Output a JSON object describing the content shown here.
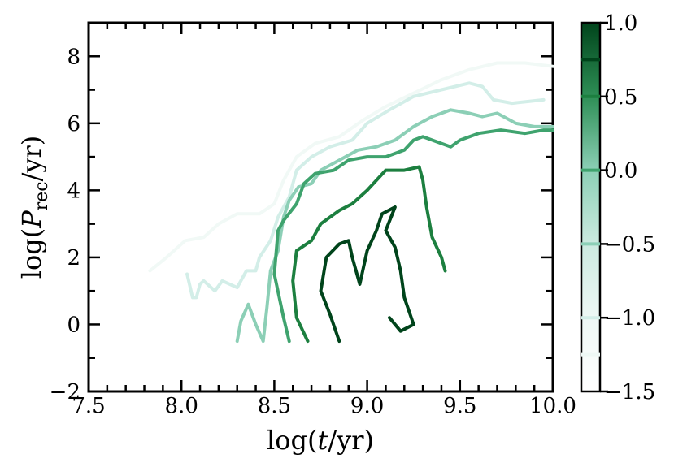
{
  "chart_data": {
    "type": "contour",
    "xlabel": "log(t/yr)",
    "ylabel": "log(P_rec/yr)",
    "xlim": [
      7.5,
      10.0
    ],
    "ylim": [
      -2,
      9
    ],
    "x_ticks": [
      "7.5",
      "8.0",
      "8.5",
      "9.0",
      "9.5",
      "10.0"
    ],
    "y_ticks": [
      "−2",
      "0",
      "2",
      "4",
      "6",
      "8"
    ],
    "colorbar": {
      "range": [
        -1.5,
        1.0
      ],
      "ticks": [
        "1.0",
        "0.5",
        "0.0",
        "−0.5",
        "−1.0",
        "−1.5"
      ],
      "levels": [
        {
          "value": -1.25,
          "color": "#eef8f5"
        },
        {
          "value": -1.0,
          "color": "#d3eee8"
        },
        {
          "value": -0.5,
          "color": "#8ccfb6"
        },
        {
          "value": 0.0,
          "color": "#3fa36e"
        },
        {
          "value": 0.5,
          "color": "#1c7f3f"
        },
        {
          "value": 0.75,
          "color": "#00441b"
        }
      ]
    },
    "contours": [
      {
        "level": -1.25,
        "color": "#f1f9f6",
        "points": [
          [
            7.83,
            1.6
          ],
          [
            7.92,
            2.0
          ],
          [
            8.02,
            2.5
          ],
          [
            8.12,
            2.6
          ],
          [
            8.2,
            3.0
          ],
          [
            8.3,
            3.3
          ],
          [
            8.42,
            3.3
          ],
          [
            8.5,
            3.6
          ],
          [
            8.55,
            4.3
          ],
          [
            8.62,
            5.0
          ],
          [
            8.72,
            5.4
          ],
          [
            8.85,
            5.6
          ],
          [
            8.98,
            6.1
          ],
          [
            9.1,
            6.5
          ],
          [
            9.25,
            6.9
          ],
          [
            9.4,
            7.3
          ],
          [
            9.55,
            7.6
          ],
          [
            9.7,
            7.8
          ],
          [
            9.85,
            7.8
          ],
          [
            10.0,
            7.7
          ]
        ]
      },
      {
        "level": -1.0,
        "color": "#d3eee8",
        "points": [
          [
            8.03,
            1.5
          ],
          [
            8.06,
            0.8
          ],
          [
            8.08,
            0.8
          ],
          [
            8.1,
            1.2
          ],
          [
            8.12,
            1.3
          ],
          [
            8.18,
            1.0
          ],
          [
            8.22,
            1.3
          ],
          [
            8.3,
            1.1
          ],
          [
            8.35,
            1.6
          ],
          [
            8.4,
            1.6
          ],
          [
            8.42,
            2.0
          ],
          [
            8.48,
            2.5
          ],
          [
            8.52,
            3.2
          ],
          [
            8.58,
            3.8
          ],
          [
            8.62,
            4.6
          ],
          [
            8.7,
            5.0
          ],
          [
            8.8,
            5.3
          ],
          [
            8.92,
            5.5
          ],
          [
            9.0,
            6.0
          ],
          [
            9.12,
            6.4
          ],
          [
            9.25,
            6.8
          ],
          [
            9.4,
            7.0
          ],
          [
            9.55,
            7.2
          ],
          [
            9.62,
            7.1
          ],
          [
            9.68,
            6.7
          ],
          [
            9.78,
            6.6
          ],
          [
            9.95,
            6.7
          ]
        ]
      },
      {
        "level": -0.5,
        "color": "#8ccfb6",
        "points": [
          [
            8.3,
            -0.5
          ],
          [
            8.32,
            0.1
          ],
          [
            8.36,
            0.6
          ],
          [
            8.4,
            0.0
          ],
          [
            8.44,
            -0.5
          ],
          [
            8.46,
            0.5
          ],
          [
            8.48,
            1.6
          ],
          [
            8.52,
            2.2
          ],
          [
            8.55,
            3.2
          ],
          [
            8.58,
            3.7
          ],
          [
            8.63,
            4.1
          ],
          [
            8.7,
            4.2
          ],
          [
            8.75,
            4.6
          ],
          [
            8.85,
            4.9
          ],
          [
            8.95,
            5.2
          ],
          [
            9.05,
            5.3
          ],
          [
            9.15,
            5.5
          ],
          [
            9.25,
            5.9
          ],
          [
            9.35,
            6.2
          ],
          [
            9.45,
            6.4
          ],
          [
            9.55,
            6.3
          ],
          [
            9.62,
            6.2
          ],
          [
            9.7,
            6.3
          ],
          [
            9.8,
            6.0
          ],
          [
            9.9,
            5.9
          ],
          [
            10.0,
            5.9
          ]
        ]
      },
      {
        "level": 0.0,
        "color": "#3fa36e",
        "points": [
          [
            8.58,
            -0.5
          ],
          [
            8.55,
            0.2
          ],
          [
            8.5,
            1.5
          ],
          [
            8.52,
            2.8
          ],
          [
            8.55,
            3.1
          ],
          [
            8.62,
            3.6
          ],
          [
            8.66,
            4.2
          ],
          [
            8.72,
            4.5
          ],
          [
            8.82,
            4.6
          ],
          [
            8.9,
            4.9
          ],
          [
            9.0,
            5.0
          ],
          [
            9.1,
            5.0
          ],
          [
            9.2,
            5.2
          ],
          [
            9.25,
            5.5
          ],
          [
            9.3,
            5.6
          ],
          [
            9.4,
            5.4
          ],
          [
            9.45,
            5.3
          ],
          [
            9.5,
            5.5
          ],
          [
            9.6,
            5.7
          ],
          [
            9.72,
            5.8
          ],
          [
            9.85,
            5.7
          ],
          [
            9.95,
            5.8
          ],
          [
            10.0,
            5.8
          ]
        ]
      },
      {
        "level": 0.5,
        "color": "#1c7f3f",
        "points": [
          [
            8.68,
            -0.5
          ],
          [
            8.62,
            0.2
          ],
          [
            8.6,
            1.3
          ],
          [
            8.62,
            2.2
          ],
          [
            8.7,
            2.5
          ],
          [
            8.75,
            3.0
          ],
          [
            8.85,
            3.4
          ],
          [
            8.92,
            3.6
          ],
          [
            9.0,
            4.0
          ],
          [
            9.1,
            4.6
          ],
          [
            9.2,
            4.6
          ],
          [
            9.28,
            4.7
          ],
          [
            9.3,
            4.3
          ],
          [
            9.32,
            3.5
          ],
          [
            9.35,
            2.6
          ],
          [
            9.4,
            2.0
          ],
          [
            9.42,
            1.6
          ]
        ]
      },
      {
        "level": 0.75,
        "color": "#00441b",
        "points": [
          [
            8.85,
            -0.5
          ],
          [
            8.8,
            0.3
          ],
          [
            8.75,
            1.0
          ],
          [
            8.78,
            2.0
          ],
          [
            8.85,
            2.4
          ],
          [
            8.9,
            2.5
          ],
          [
            8.92,
            2.0
          ],
          [
            8.96,
            1.2
          ],
          [
            9.0,
            2.2
          ],
          [
            9.05,
            2.8
          ],
          [
            9.08,
            3.3
          ],
          [
            9.15,
            3.5
          ],
          [
            9.1,
            2.8
          ],
          [
            9.15,
            2.3
          ],
          [
            9.18,
            1.6
          ],
          [
            9.2,
            0.8
          ],
          [
            9.25,
            0.0
          ],
          [
            9.18,
            -0.2
          ],
          [
            9.12,
            0.2
          ]
        ]
      }
    ]
  }
}
